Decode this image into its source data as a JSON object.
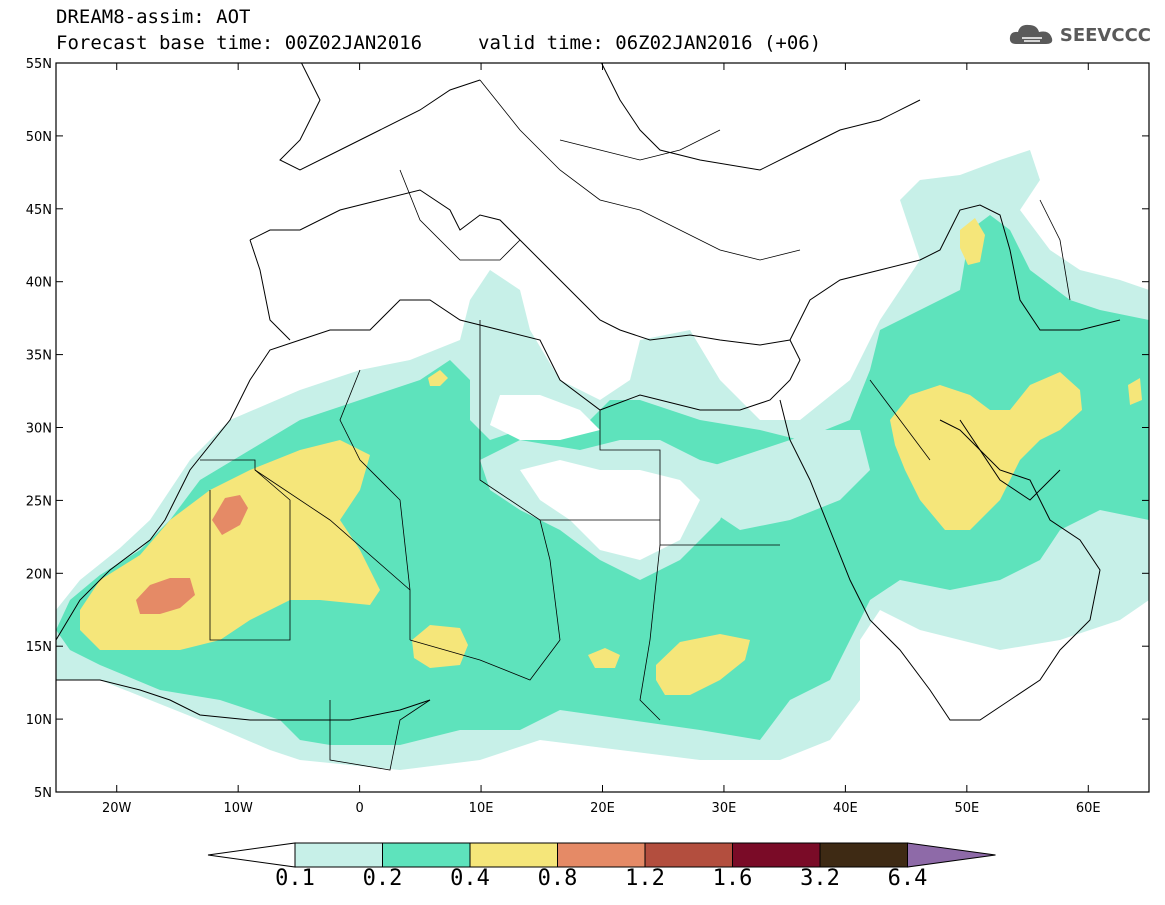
{
  "header": {
    "title_line1": "DREAM8-assim: AOT",
    "title_line2": "Forecast base time: 00Z02JAN2016",
    "valid_time": "valid time: 06Z02JAN2016 (+06)",
    "logo_text": "SEEVCCC"
  },
  "map": {
    "lon_range": [
      -25,
      65
    ],
    "lat_range": [
      5,
      55
    ],
    "lat_ticks": [
      {
        "lat": 55,
        "label": "55N"
      },
      {
        "lat": 50,
        "label": "50N"
      },
      {
        "lat": 45,
        "label": "45N"
      },
      {
        "lat": 40,
        "label": "40N"
      },
      {
        "lat": 35,
        "label": "35N"
      },
      {
        "lat": 30,
        "label": "30N"
      },
      {
        "lat": 25,
        "label": "25N"
      },
      {
        "lat": 20,
        "label": "20N"
      },
      {
        "lat": 15,
        "label": "15N"
      },
      {
        "lat": 10,
        "label": "10N"
      },
      {
        "lat": 5,
        "label": "5N"
      }
    ],
    "lon_ticks": [
      {
        "lon": -20,
        "label": "20W"
      },
      {
        "lon": -10,
        "label": "10W"
      },
      {
        "lon": 0,
        "label": "0"
      },
      {
        "lon": 10,
        "label": "10E"
      },
      {
        "lon": 20,
        "label": "20E"
      },
      {
        "lon": 30,
        "label": "30E"
      },
      {
        "lon": 40,
        "label": "40E"
      },
      {
        "lon": 50,
        "label": "50E"
      },
      {
        "lon": 60,
        "label": "60E"
      }
    ]
  },
  "colorbar": {
    "levels": [
      "0.1",
      "0.2",
      "0.4",
      "0.8",
      "1.2",
      "1.6",
      "3.2",
      "6.4"
    ],
    "colors": [
      "#ffffff",
      "#c7f0e8",
      "#5ee3bc",
      "#f5e67a",
      "#e58a66",
      "#b34e3e",
      "#7a0b27",
      "#3e2a14",
      "#8e6aa8"
    ]
  }
}
